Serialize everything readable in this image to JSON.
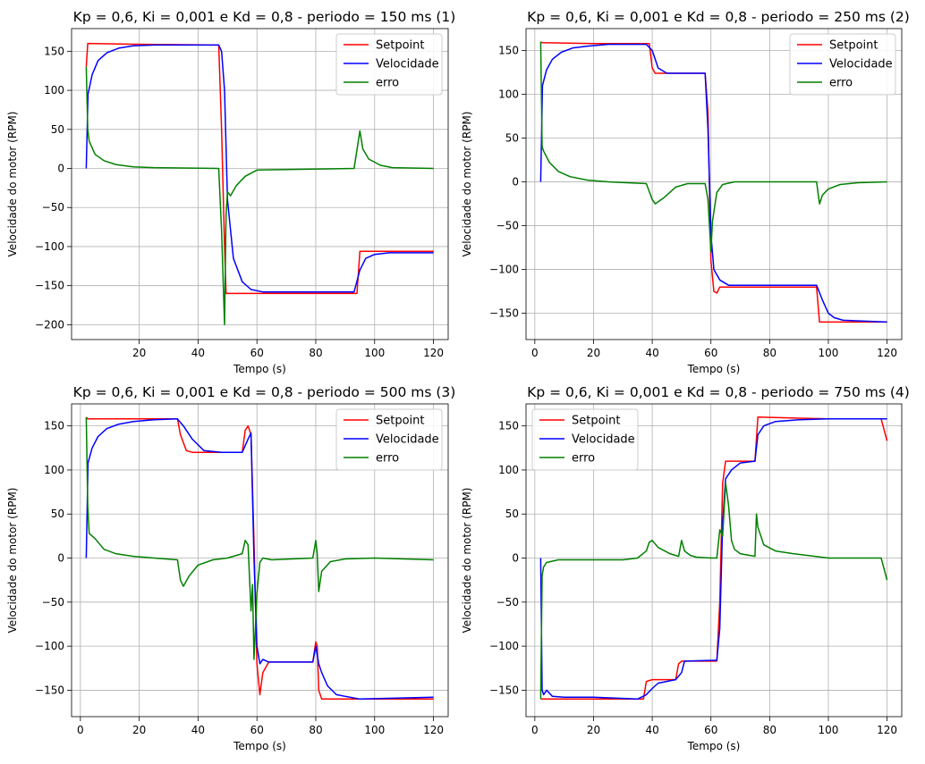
{
  "colors": {
    "setpoint": "#ff0000",
    "velocidade": "#0000ff",
    "erro": "#008000",
    "grid": "#b0b0b0"
  },
  "chart_data": [
    {
      "type": "line",
      "title": "Kp = 0,6, Ki = 0,001 e Kd = 0,8 - periodo = 150 ms (1)",
      "xlabel": "Tempo (s)",
      "ylabel": "Velocidade do motor (RPM)",
      "xlim": [
        -3,
        125
      ],
      "ylim": [
        -219,
        179
      ],
      "xticks": [
        20,
        40,
        60,
        80,
        100,
        120
      ],
      "yticks": [
        150,
        100,
        50,
        0,
        -50,
        -100,
        -150,
        -200
      ],
      "ytick_labels": [
        "150",
        "100",
        "50",
        "0",
        "−50",
        "−100",
        "−150",
        "−200"
      ],
      "grid": true,
      "legend_position": "top-right",
      "series": [
        {
          "name": "Setpoint",
          "color": "#ff0000",
          "x": [
            2,
            2.5,
            18,
            47,
            48,
            49,
            49.5,
            94,
            95,
            120
          ],
          "y": [
            130,
            160,
            159,
            158,
            50,
            -100,
            -160,
            -160,
            -106,
            -106
          ]
        },
        {
          "name": "Velocidade",
          "color": "#0000ff",
          "x": [
            2,
            2.6,
            4,
            6,
            9,
            13,
            18,
            25,
            47,
            48,
            49,
            50,
            52,
            55,
            58,
            62,
            70,
            93,
            95,
            97,
            100,
            105,
            120
          ],
          "y": [
            0,
            95,
            120,
            138,
            148,
            154,
            157,
            158,
            158,
            150,
            100,
            -40,
            -115,
            -145,
            -155,
            -158,
            -158,
            -158,
            -130,
            -115,
            -110,
            -108,
            -108
          ]
        },
        {
          "name": "erro",
          "color": "#008000",
          "x": [
            2,
            2.5,
            3,
            5,
            8,
            12,
            18,
            25,
            47,
            48,
            49,
            49.5,
            50,
            51,
            53,
            56,
            60,
            93,
            95,
            96,
            98,
            102,
            106,
            120
          ],
          "y": [
            130,
            50,
            35,
            18,
            10,
            5,
            2,
            1,
            0,
            -80,
            -200,
            -60,
            -30,
            -35,
            -22,
            -10,
            -2,
            0,
            48,
            25,
            12,
            4,
            1,
            0
          ]
        }
      ]
    },
    {
      "type": "line",
      "title": "Kp = 0,6, Ki = 0,001 e Kd = 0,8 - periodo = 250 ms (2)",
      "xlabel": "Tempo (s)",
      "ylabel": "Velocidade do motor (RPM)",
      "xlim": [
        -3,
        125
      ],
      "ylim": [
        -180,
        175
      ],
      "xticks": [
        0,
        20,
        40,
        60,
        80,
        100,
        120
      ],
      "yticks": [
        150,
        100,
        50,
        0,
        -50,
        -100,
        -150
      ],
      "ytick_labels": [
        "150",
        "100",
        "50",
        "0",
        "−50",
        "−100",
        "−150"
      ],
      "grid": true,
      "legend_position": "top-right",
      "series": [
        {
          "name": "Setpoint",
          "color": "#ff0000",
          "x": [
            2,
            2.5,
            20,
            39,
            40,
            41,
            58,
            59,
            60,
            61,
            62,
            63,
            96,
            97,
            120
          ],
          "y": [
            160,
            159,
            158,
            158,
            130,
            124,
            124,
            80,
            -90,
            -125,
            -127,
            -120,
            -120,
            -160,
            -160
          ]
        },
        {
          "name": "Velocidade",
          "color": "#0000ff",
          "x": [
            2,
            2.6,
            4,
            6,
            9,
            13,
            18,
            25,
            38,
            40,
            42,
            45,
            58,
            59,
            60,
            61,
            63,
            66,
            96,
            98,
            100,
            102,
            105,
            120
          ],
          "y": [
            0,
            110,
            128,
            140,
            148,
            153,
            155,
            157,
            157,
            150,
            130,
            124,
            124,
            60,
            -60,
            -100,
            -112,
            -118,
            -118,
            -135,
            -150,
            -155,
            -158,
            -160
          ]
        },
        {
          "name": "erro",
          "color": "#008000",
          "x": [
            2,
            2.5,
            3,
            5,
            8,
            12,
            18,
            25,
            38,
            40,
            41,
            44,
            48,
            52,
            58,
            59,
            60,
            60.5,
            62,
            64,
            68,
            96,
            97,
            98,
            100,
            104,
            110,
            120
          ],
          "y": [
            160,
            40,
            35,
            22,
            12,
            6,
            2,
            0,
            -2,
            -20,
            -25,
            -18,
            -6,
            -2,
            -2,
            -20,
            -80,
            -45,
            -12,
            -3,
            0,
            0,
            -25,
            -15,
            -8,
            -3,
            -1,
            0
          ]
        }
      ]
    },
    {
      "type": "line",
      "title": "Kp = 0,6, Ki = 0,001 e Kd = 0,8 - periodo = 500 ms (3)",
      "xlabel": "Tempo (s)",
      "ylabel": "Velocidade do motor (RPM)",
      "xlim": [
        -3,
        125
      ],
      "ylim": [
        -180,
        175
      ],
      "xticks": [
        0,
        20,
        40,
        60,
        80,
        100,
        120
      ],
      "yticks": [
        150,
        100,
        50,
        0,
        -50,
        -100,
        -150
      ],
      "ytick_labels": [
        "150",
        "100",
        "50",
        "0",
        "−50",
        "−100",
        "−150"
      ],
      "grid": true,
      "legend_position": "top-right",
      "series": [
        {
          "name": "Setpoint",
          "color": "#ff0000",
          "x": [
            2,
            2.5,
            20,
            33,
            34,
            36,
            38,
            55,
            56,
            57,
            58,
            59,
            60,
            61,
            62,
            64,
            79,
            80,
            80.5,
            81,
            82,
            120
          ],
          "y": [
            160,
            158,
            158,
            158,
            140,
            122,
            120,
            120,
            145,
            150,
            140,
            20,
            -120,
            -155,
            -130,
            -118,
            -118,
            -95,
            -100,
            -150,
            -160,
            -160
          ]
        },
        {
          "name": "Velocidade",
          "color": "#0000ff",
          "x": [
            2,
            2.6,
            4,
            6,
            9,
            13,
            18,
            25,
            33,
            35,
            38,
            42,
            48,
            55,
            57,
            58,
            59,
            60,
            61,
            62,
            64,
            79,
            80,
            81,
            82,
            84,
            87,
            95,
            120
          ],
          "y": [
            0,
            108,
            125,
            138,
            147,
            152,
            155,
            157,
            158,
            150,
            135,
            122,
            120,
            120,
            135,
            142,
            0,
            -100,
            -120,
            -115,
            -118,
            -118,
            -100,
            -120,
            -130,
            -145,
            -155,
            -160,
            -158
          ]
        },
        {
          "name": "erro",
          "color": "#008000",
          "x": [
            2,
            2.5,
            3,
            5,
            8,
            12,
            18,
            25,
            33,
            34,
            35,
            37,
            40,
            45,
            50,
            55,
            56,
            57,
            58,
            58.5,
            59,
            60,
            61,
            62,
            65,
            79,
            80,
            80.5,
            81,
            82,
            85,
            90,
            100,
            120
          ],
          "y": [
            160,
            60,
            28,
            22,
            10,
            5,
            2,
            0,
            -2,
            -25,
            -32,
            -20,
            -8,
            -2,
            0,
            5,
            20,
            15,
            -60,
            -30,
            -115,
            -40,
            -5,
            0,
            -2,
            0,
            20,
            5,
            -38,
            -15,
            -4,
            -1,
            0,
            -2
          ]
        }
      ]
    },
    {
      "type": "line",
      "title": "Kp = 0,6, Ki = 0,001 e Kd = 0,8 - periodo = 750 ms (4)",
      "xlabel": "Tempo (s)",
      "ylabel": "Velocidade do motor (RPM)",
      "xlim": [
        -3,
        125
      ],
      "ylim": [
        -180,
        175
      ],
      "xticks": [
        0,
        20,
        40,
        60,
        80,
        100,
        120
      ],
      "yticks": [
        150,
        100,
        50,
        0,
        -50,
        -100,
        -150
      ],
      "ytick_labels": [
        "150",
        "100",
        "50",
        "0",
        "−50",
        "−100",
        "−150"
      ],
      "grid": true,
      "legend_position": "top-left",
      "series": [
        {
          "name": "Setpoint",
          "color": "#ff0000",
          "x": [
            2,
            2.5,
            37,
            38,
            40,
            48,
            49,
            50,
            62,
            63,
            64,
            65,
            75,
            76,
            100,
            118,
            120
          ],
          "y": [
            -160,
            -160,
            -160,
            -140,
            -138,
            -138,
            -120,
            -117,
            -117,
            -50,
            85,
            110,
            110,
            160,
            158,
            158,
            133
          ]
        },
        {
          "name": "Velocidade",
          "color": "#0000ff",
          "x": [
            2,
            2.5,
            3,
            4,
            6,
            10,
            20,
            35,
            38,
            40,
            42,
            45,
            48,
            50,
            51,
            62,
            63,
            64,
            65,
            67,
            70,
            75,
            76,
            78,
            82,
            90,
            100,
            120
          ],
          "y": [
            0,
            -150,
            -155,
            -150,
            -157,
            -158,
            -158,
            -160,
            -155,
            -148,
            -142,
            -140,
            -138,
            -130,
            -117,
            -116,
            -80,
            40,
            90,
            100,
            108,
            110,
            140,
            150,
            155,
            157,
            158,
            158
          ]
        },
        {
          "name": "erro",
          "color": "#008000",
          "x": [
            2,
            2.5,
            3,
            4,
            8,
            20,
            30,
            35,
            38,
            39,
            40,
            42,
            46,
            49,
            50,
            51,
            53,
            55,
            60,
            62,
            63,
            64,
            65,
            66,
            67,
            68,
            70,
            75,
            75.5,
            76,
            78,
            82,
            88,
            100,
            118,
            120
          ],
          "y": [
            -160,
            -20,
            -10,
            -5,
            -2,
            -2,
            -2,
            0,
            8,
            18,
            20,
            12,
            5,
            2,
            20,
            8,
            3,
            1,
            0,
            0,
            32,
            25,
            85,
            60,
            20,
            10,
            5,
            2,
            50,
            35,
            15,
            8,
            5,
            0,
            0,
            -25
          ]
        }
      ]
    }
  ]
}
